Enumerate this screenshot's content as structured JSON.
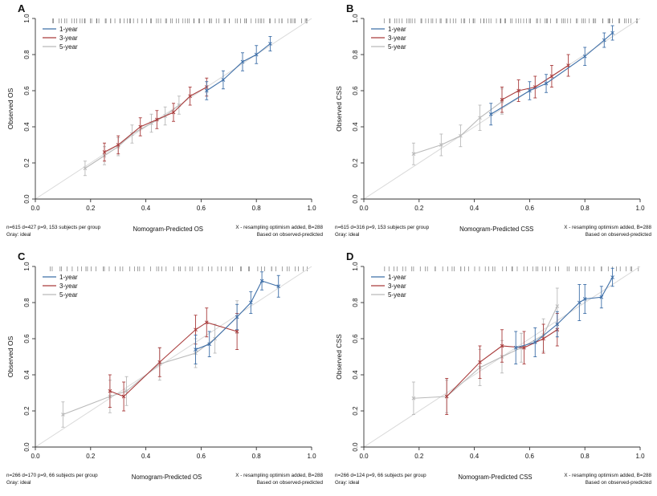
{
  "colors": {
    "one_year": "#3e6fa8",
    "three_year": "#a93c3c",
    "five_year": "#b9b9b9",
    "ideal": "#d9d9d9",
    "axis": "#333333",
    "rug": "#555555",
    "text": "#111111"
  },
  "chart_data": [
    {
      "type": "line",
      "panel_label": "A",
      "ylabel": "Observed OS",
      "xlabel": "Nomogram-Predicted OS",
      "xlim": [
        0,
        1
      ],
      "ylim": [
        0,
        1
      ],
      "xticks": [
        0,
        0.2,
        0.4,
        0.6,
        0.8,
        1.0
      ],
      "yticks": [
        0,
        0.2,
        0.4,
        0.6,
        0.8,
        1.0
      ],
      "legend": [
        "1-year",
        "3-year",
        "5-year"
      ],
      "grid": false,
      "legend_position": "top-left",
      "ideal_line": {
        "from": [
          0,
          0
        ],
        "to": [
          1,
          1
        ]
      },
      "rug": {
        "min": 0.06,
        "max": 0.99,
        "count": 90
      },
      "footnotes": {
        "left": [
          "n=615 d=427 p=9, 153 subjects per group",
          "Gray: ideal"
        ],
        "center": "Nomogram-Predicted OS",
        "right": [
          "X - resampling optimism added, B=288",
          "Based on observed-predicted"
        ]
      },
      "series": [
        {
          "name": "1-year",
          "color_key": "one_year",
          "x": [
            0.62,
            0.68,
            0.75,
            0.8,
            0.85
          ],
          "y": [
            0.6,
            0.66,
            0.76,
            0.8,
            0.86
          ],
          "err": [
            0.05,
            0.05,
            0.05,
            0.05,
            0.04
          ]
        },
        {
          "name": "3-year",
          "color_key": "three_year",
          "x": [
            0.25,
            0.3,
            0.38,
            0.44,
            0.5,
            0.56,
            0.62
          ],
          "y": [
            0.26,
            0.3,
            0.4,
            0.44,
            0.48,
            0.57,
            0.62
          ],
          "err": [
            0.05,
            0.05,
            0.05,
            0.05,
            0.05,
            0.05,
            0.05
          ]
        },
        {
          "name": "5-year",
          "color_key": "five_year",
          "x": [
            0.18,
            0.25,
            0.3,
            0.35,
            0.42,
            0.47,
            0.52
          ],
          "y": [
            0.17,
            0.24,
            0.29,
            0.36,
            0.42,
            0.46,
            0.52
          ],
          "err": [
            0.04,
            0.05,
            0.05,
            0.05,
            0.05,
            0.05,
            0.05
          ]
        }
      ]
    },
    {
      "type": "line",
      "panel_label": "B",
      "ylabel": "Observed CSS",
      "xlabel": "Nomogram-Predicted CSS",
      "xlim": [
        0,
        1
      ],
      "ylim": [
        0,
        1
      ],
      "xticks": [
        0,
        0.2,
        0.4,
        0.6,
        0.8,
        1.0
      ],
      "yticks": [
        0,
        0.2,
        0.4,
        0.6,
        0.8,
        1.0
      ],
      "legend": [
        "1-year",
        "3-year",
        "5-year"
      ],
      "grid": false,
      "legend_position": "top-left",
      "ideal_line": {
        "from": [
          0,
          0
        ],
        "to": [
          1,
          1
        ]
      },
      "rug": {
        "min": 0.08,
        "max": 0.99,
        "count": 90
      },
      "footnotes": {
        "left": [
          "n=615 d=316 p=9, 153 subjects per group",
          "Gray: ideal"
        ],
        "center": "Nomogram-Predicted CSS",
        "right": [
          "X - resampling optimism added, B=288",
          "Based on observed-predicted"
        ]
      },
      "series": [
        {
          "name": "1-year",
          "color_key": "one_year",
          "x": [
            0.46,
            0.6,
            0.66,
            0.8,
            0.87,
            0.9
          ],
          "y": [
            0.47,
            0.6,
            0.64,
            0.79,
            0.88,
            0.92
          ],
          "err": [
            0.06,
            0.05,
            0.05,
            0.05,
            0.04,
            0.04
          ]
        },
        {
          "name": "3-year",
          "color_key": "three_year",
          "x": [
            0.5,
            0.56,
            0.62,
            0.68,
            0.74
          ],
          "y": [
            0.55,
            0.6,
            0.62,
            0.68,
            0.74
          ],
          "err": [
            0.07,
            0.06,
            0.06,
            0.06,
            0.06
          ]
        },
        {
          "name": "5-year",
          "color_key": "five_year",
          "x": [
            0.18,
            0.28,
            0.35,
            0.42,
            0.5
          ],
          "y": [
            0.25,
            0.3,
            0.35,
            0.45,
            0.54
          ],
          "err": [
            0.06,
            0.06,
            0.06,
            0.07,
            0.07
          ]
        }
      ]
    },
    {
      "type": "line",
      "panel_label": "C",
      "ylabel": "Observed OS",
      "xlabel": "Nomogram-Predicted OS",
      "xlim": [
        0,
        1
      ],
      "ylim": [
        0,
        1
      ],
      "xticks": [
        0,
        0.2,
        0.4,
        0.6,
        0.8,
        1.0
      ],
      "yticks": [
        0,
        0.2,
        0.4,
        0.6,
        0.8,
        1.0
      ],
      "legend": [
        "1-year",
        "3-year",
        "5-year"
      ],
      "grid": false,
      "legend_position": "top-left",
      "ideal_line": {
        "from": [
          0,
          0
        ],
        "to": [
          1,
          1
        ]
      },
      "rug": {
        "min": 0.05,
        "max": 0.99,
        "count": 60
      },
      "footnotes": {
        "left": [
          "n=266 d=170 p=9, 66 subjects per group",
          "Gray: ideal"
        ],
        "center": "Nomogram-Predicted OS",
        "right": [
          "X - resampling optimism added, B=288",
          "Based on observed-predicted"
        ]
      },
      "series": [
        {
          "name": "1-year",
          "color_key": "one_year",
          "x": [
            0.58,
            0.63,
            0.73,
            0.78,
            0.82,
            0.88
          ],
          "y": [
            0.54,
            0.57,
            0.72,
            0.8,
            0.92,
            0.89
          ],
          "err": [
            0.08,
            0.07,
            0.07,
            0.06,
            0.05,
            0.06
          ]
        },
        {
          "name": "3-year",
          "color_key": "three_year",
          "x": [
            0.27,
            0.32,
            0.45,
            0.58,
            0.62,
            0.73
          ],
          "y": [
            0.31,
            0.28,
            0.47,
            0.65,
            0.69,
            0.64
          ],
          "err": [
            0.09,
            0.08,
            0.08,
            0.08,
            0.08,
            0.1
          ]
        },
        {
          "name": "5-year",
          "color_key": "five_year",
          "x": [
            0.1,
            0.27,
            0.33,
            0.45,
            0.58,
            0.65,
            0.73
          ],
          "y": [
            0.18,
            0.28,
            0.31,
            0.46,
            0.52,
            0.6,
            0.72
          ],
          "err": [
            0.07,
            0.09,
            0.08,
            0.09,
            0.08,
            0.08,
            0.09
          ]
        }
      ]
    },
    {
      "type": "line",
      "panel_label": "D",
      "ylabel": "Observed CSS",
      "xlabel": "Nomogram-Predicted CSS",
      "xlim": [
        0,
        1
      ],
      "ylim": [
        0,
        1
      ],
      "xticks": [
        0,
        0.2,
        0.4,
        0.6,
        0.8,
        1.0
      ],
      "yticks": [
        0,
        0.2,
        0.4,
        0.6,
        0.8,
        1.0
      ],
      "legend": [
        "1-year",
        "3-year",
        "5-year"
      ],
      "grid": false,
      "legend_position": "top-left",
      "ideal_line": {
        "from": [
          0,
          0
        ],
        "to": [
          1,
          1
        ]
      },
      "rug": {
        "min": 0.08,
        "max": 0.99,
        "count": 60
      },
      "footnotes": {
        "left": [
          "n=266 d=124 p=9, 66 subjects per group",
          "Gray: ideal"
        ],
        "center": "Nomogram-Predicted CSS",
        "right": [
          "X - resampling optimism added, B=288",
          "Based on observed-predicted"
        ]
      },
      "series": [
        {
          "name": "1-year",
          "color_key": "one_year",
          "x": [
            0.55,
            0.62,
            0.7,
            0.78,
            0.8,
            0.86,
            0.9
          ],
          "y": [
            0.55,
            0.58,
            0.68,
            0.8,
            0.82,
            0.83,
            0.94
          ],
          "err": [
            0.09,
            0.08,
            0.07,
            0.1,
            0.08,
            0.06,
            0.05
          ]
        },
        {
          "name": "3-year",
          "color_key": "three_year",
          "x": [
            0.3,
            0.42,
            0.5,
            0.58,
            0.65,
            0.7
          ],
          "y": [
            0.28,
            0.47,
            0.56,
            0.55,
            0.6,
            0.65
          ],
          "err": [
            0.1,
            0.09,
            0.09,
            0.09,
            0.08,
            0.09
          ]
        },
        {
          "name": "5-year",
          "color_key": "five_year",
          "x": [
            0.18,
            0.3,
            0.42,
            0.5,
            0.57,
            0.65,
            0.7
          ],
          "y": [
            0.27,
            0.28,
            0.44,
            0.5,
            0.55,
            0.62,
            0.78
          ],
          "err": [
            0.09,
            0.09,
            0.1,
            0.09,
            0.08,
            0.09,
            0.1
          ]
        }
      ]
    }
  ]
}
